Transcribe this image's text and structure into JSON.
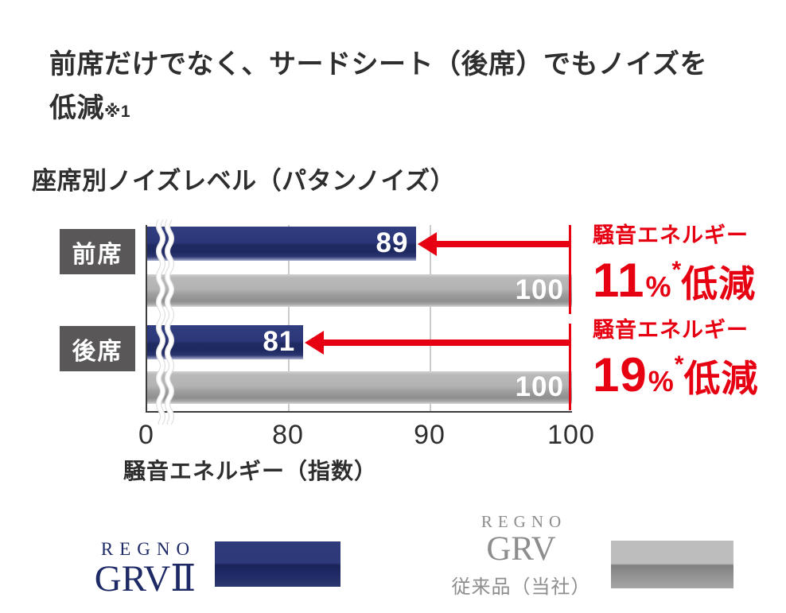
{
  "page": {
    "background": "#ffffff"
  },
  "heading": {
    "line1": "前席だけでなく、サードシート（後席）でもノイズを",
    "line2": "低減",
    "footnote": "※1"
  },
  "chart_title": "座席別ノイズレベル（パタンノイズ）",
  "chart_data": {
    "type": "bar",
    "orientation": "horizontal",
    "categories": [
      "前席",
      "後席"
    ],
    "series": [
      {
        "name": "REGNO GRVⅡ",
        "color": "#2c3877",
        "values": [
          89,
          81
        ]
      },
      {
        "name": "REGNO GRV 従来品（当社）",
        "color": "#aaaaaa",
        "values": [
          100,
          100
        ]
      }
    ],
    "xlabel": "騒音エネルギー（指数）",
    "ticks": [
      "0",
      "80",
      "90",
      "100"
    ],
    "xlim": [
      0,
      100
    ],
    "axis_break": true,
    "grid": "vertical",
    "accent_color": "#e60012",
    "annotations": [
      {
        "category": "前席",
        "label": "騒音エネルギー",
        "value": "11",
        "unit": "%",
        "footnote_mark": "*",
        "suffix": "低減"
      },
      {
        "category": "後席",
        "label": "騒音エネルギー",
        "value": "19",
        "unit": "%",
        "footnote_mark": "*",
        "suffix": "低減"
      }
    ]
  },
  "legend": {
    "current": {
      "brand": "REGNO",
      "model": "GRVⅡ",
      "swatch_color": "#2c3877"
    },
    "previous": {
      "brand": "REGNO",
      "model": "GRV",
      "note": "従来品（当社）",
      "swatch_color": "#b0b0b0"
    }
  }
}
